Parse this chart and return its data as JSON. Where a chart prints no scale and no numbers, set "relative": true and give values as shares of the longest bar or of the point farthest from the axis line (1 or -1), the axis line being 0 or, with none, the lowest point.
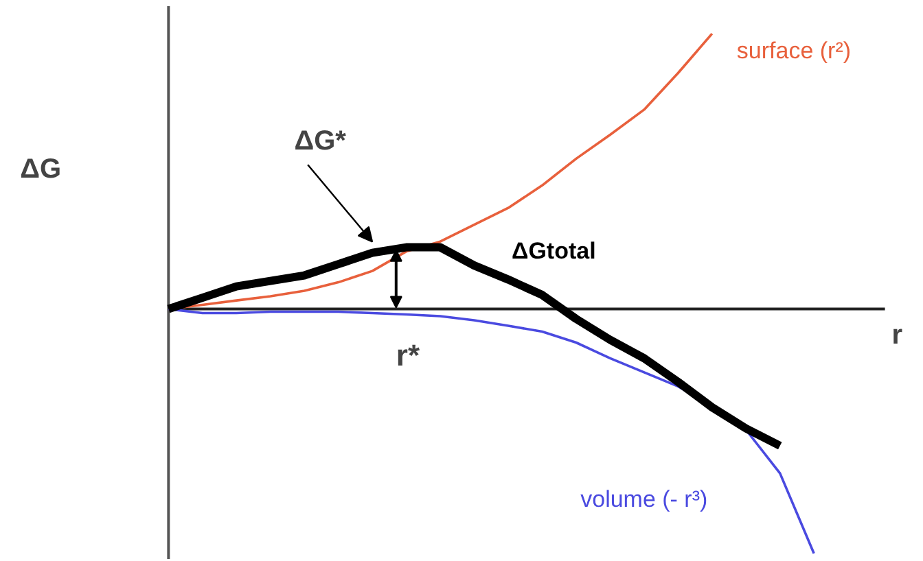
{
  "chart_data": {
    "type": "line",
    "relative": true,
    "xlabel": "r",
    "ylabel": "ΔG",
    "categories": [
      null,
      null,
      null,
      null,
      null,
      null,
      null,
      null,
      null,
      null,
      null,
      null,
      null,
      null,
      null,
      null,
      null,
      null,
      null,
      null
    ],
    "series": [
      {
        "name": "surface (r²)",
        "color": "#e8603c",
        "values": [
          0,
          0.015,
          0.031,
          0.046,
          0.066,
          0.097,
          0.138,
          0.209,
          0.245,
          0.306,
          0.367,
          0.449,
          0.546,
          0.633,
          0.724,
          0.857,
          1.0,
          null,
          null,
          null
        ]
      },
      {
        "name": "volume (- r³)",
        "color": "#4a4ae0",
        "values": [
          0,
          -0.015,
          -0.015,
          -0.01,
          -0.01,
          -0.01,
          -0.015,
          -0.02,
          -0.026,
          -0.041,
          -0.061,
          -0.082,
          -0.122,
          -0.179,
          -0.23,
          -0.281,
          -0.352,
          -0.439,
          -0.597,
          -0.888
        ]
      },
      {
        "name": "ΔGtotal",
        "color": "#000000",
        "values": [
          0,
          0.041,
          0.082,
          0.102,
          0.122,
          0.163,
          0.204,
          0.224,
          0.224,
          0.158,
          0.107,
          0.051,
          -0.036,
          -0.112,
          -0.179,
          -0.265,
          -0.357,
          -0.434,
          -0.497,
          null
        ]
      }
    ],
    "annotations": [
      "ΔG*",
      "r*"
    ]
  }
}
